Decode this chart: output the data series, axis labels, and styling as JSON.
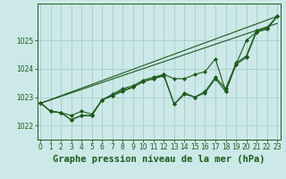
{
  "title": "Graphe pression niveau de la mer (hPa)",
  "bg_color": "#cce8e8",
  "grid_color": "#aacccc",
  "line_color": "#1a5c1a",
  "x_labels": [
    "0",
    "1",
    "2",
    "3",
    "4",
    "5",
    "6",
    "7",
    "8",
    "9",
    "10",
    "11",
    "12",
    "13",
    "14",
    "15",
    "16",
    "17",
    "18",
    "19",
    "20",
    "21",
    "22",
    "23"
  ],
  "series1": [
    1022.8,
    1022.5,
    1022.45,
    1022.2,
    1022.35,
    1022.35,
    1022.9,
    1023.05,
    1023.2,
    1023.35,
    1023.55,
    1023.65,
    1023.75,
    1022.75,
    1023.1,
    1023.0,
    1023.15,
    1023.65,
    1023.2,
    1024.15,
    1024.4,
    1025.3,
    1025.4,
    1025.85
  ],
  "series2": [
    1022.8,
    1022.5,
    1022.45,
    1022.2,
    1022.35,
    1022.35,
    1022.9,
    1023.05,
    1023.25,
    1023.35,
    1023.55,
    1023.65,
    1023.8,
    1023.65,
    1023.65,
    1023.8,
    1023.9,
    1024.35,
    1023.2,
    1024.15,
    1025.0,
    1025.3,
    1025.4,
    1025.85
  ],
  "series3": [
    1022.8,
    1022.5,
    1022.45,
    1022.35,
    1022.5,
    1022.4,
    1022.9,
    1023.1,
    1023.3,
    1023.4,
    1023.6,
    1023.7,
    1023.8,
    1022.75,
    1023.15,
    1023.0,
    1023.2,
    1023.7,
    1023.3,
    1024.2,
    1024.45,
    1025.35,
    1025.45,
    1025.85
  ],
  "trend1": [
    1022.8,
    1023.0,
    1023.2,
    1023.4,
    1023.6,
    1023.8,
    1024.0,
    1024.2,
    1024.4,
    1024.6,
    1024.8,
    1025.0,
    1025.2,
    1025.4,
    1025.6,
    1025.8,
    1025.85
  ],
  "ylim": [
    1021.5,
    1026.3
  ],
  "yticks": [
    1022,
    1023,
    1024,
    1025
  ],
  "xlim": [
    -0.3,
    23.3
  ],
  "title_fontsize": 7.5,
  "tick_fontsize": 5.5
}
